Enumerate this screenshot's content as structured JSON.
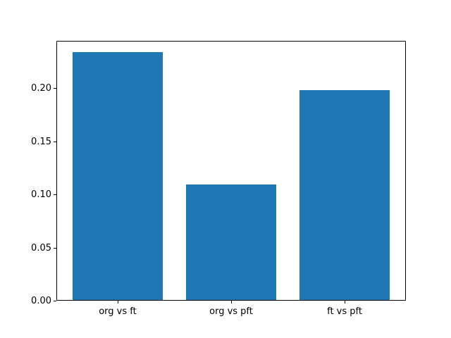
{
  "chart_data": {
    "type": "bar",
    "categories": [
      "org vs ft",
      "org vs pft",
      "ft vs pft"
    ],
    "values": [
      0.234,
      0.109,
      0.198
    ],
    "title": "",
    "xlabel": "",
    "ylabel": "",
    "ylim": [
      0,
      0.2445
    ],
    "xlim": [
      -0.54,
      2.54
    ],
    "bar_width": 0.8,
    "yticks": [
      0.0,
      0.05,
      0.1,
      0.15,
      0.2
    ],
    "ytick_labels": [
      "0.00",
      "0.05",
      "0.10",
      "0.15",
      "0.20"
    ],
    "bar_color": "#1f77b4",
    "axis_color": "#000000",
    "background_color": "#ffffff",
    "grid": false,
    "legend": null
  }
}
